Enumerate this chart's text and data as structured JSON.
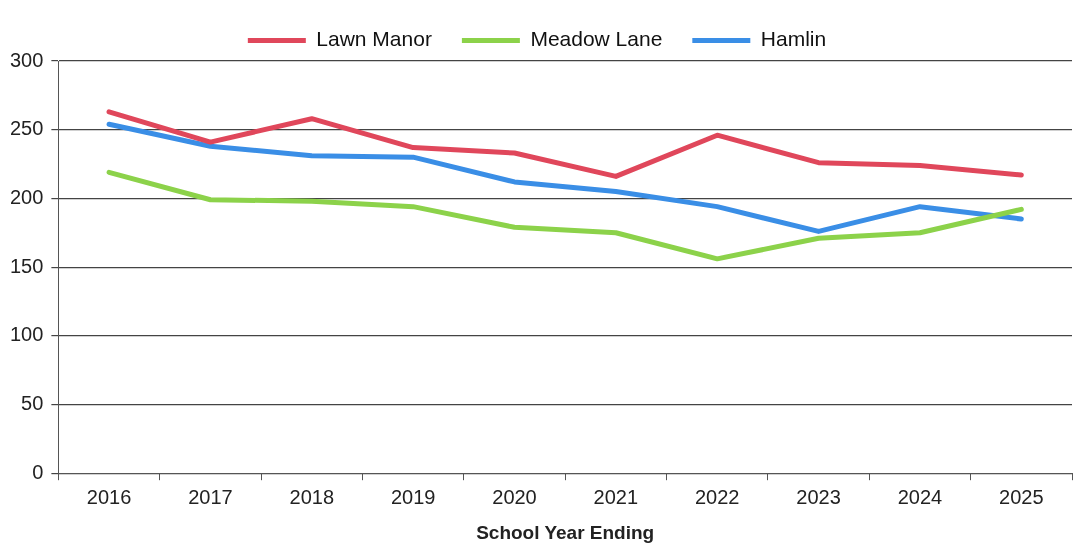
{
  "chart_data": {
    "type": "line",
    "xlabel": "School Year Ending",
    "categories": [
      "2016",
      "2017",
      "2018",
      "2019",
      "2020",
      "2021",
      "2022",
      "2023",
      "2024",
      "2025"
    ],
    "series": [
      {
        "name": "Lawn Manor",
        "color": "#e0475b",
        "values": [
          263,
          241,
          258,
          237,
          233,
          216,
          246,
          226,
          224,
          217
        ]
      },
      {
        "name": "Meadow Lane",
        "color": "#8cd24a",
        "values": [
          219,
          199,
          198,
          194,
          179,
          175,
          156,
          171,
          175,
          192
        ]
      },
      {
        "name": "Hamlin",
        "color": "#3a8ee6",
        "values": [
          254,
          238,
          231,
          230,
          212,
          205,
          194,
          176,
          194,
          185
        ]
      }
    ],
    "ylim": [
      0,
      300
    ],
    "yticks": [
      0,
      50,
      100,
      150,
      200,
      250,
      300
    ],
    "grid": "y",
    "legend": "top",
    "marker": "none",
    "line_style": "solid"
  }
}
